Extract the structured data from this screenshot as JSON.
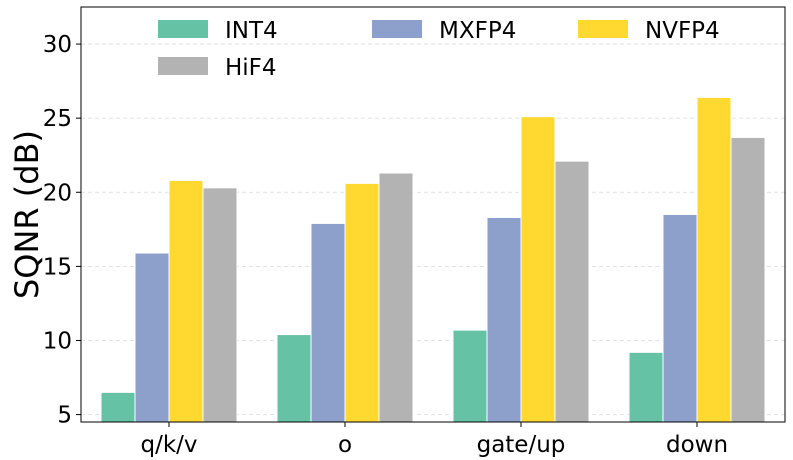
{
  "chart_data": {
    "type": "bar",
    "title": "",
    "xlabel": "",
    "ylabel": "SQNR (dB)",
    "ylim": [
      4.5,
      32.5
    ],
    "yticks": [
      5,
      10,
      15,
      20,
      25,
      30
    ],
    "grid": true,
    "legend_position": "top",
    "categories": [
      "q/k/v",
      "o",
      "gate/up",
      "down"
    ],
    "series": [
      {
        "name": "INT4",
        "color": "#66c2a5",
        "values": [
          6.5,
          10.4,
          10.7,
          9.2
        ]
      },
      {
        "name": "MXFP4",
        "color": "#8da0cb",
        "values": [
          15.9,
          17.9,
          18.3,
          18.5
        ]
      },
      {
        "name": "NVFP4",
        "color": "#ffd92f",
        "values": [
          20.8,
          20.6,
          25.1,
          26.4
        ]
      },
      {
        "name": "HiF4",
        "color": "#b3b3b3",
        "values": [
          20.3,
          21.3,
          22.1,
          23.7
        ]
      }
    ]
  }
}
